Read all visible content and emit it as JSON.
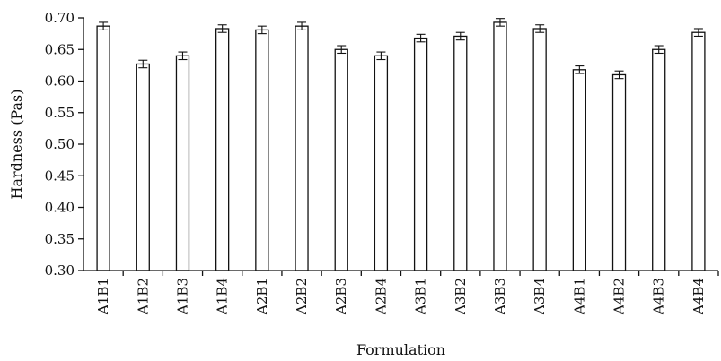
{
  "chart_data": {
    "type": "bar",
    "title": "",
    "xlabel": "Formulation",
    "ylabel": "Hardness (Pas)",
    "ylim": [
      0.3,
      0.7
    ],
    "yticks": [
      "0.30",
      "0.35",
      "0.40",
      "0.45",
      "0.50",
      "0.55",
      "0.60",
      "0.65",
      "0.70"
    ],
    "grid": false,
    "categories": [
      "A1B1",
      "A1B2",
      "A1B3",
      "A1B4",
      "A2B1",
      "A2B2",
      "A2B3",
      "A2B4",
      "A3B1",
      "A3B2",
      "A3B3",
      "A3B4",
      "A4B1",
      "A4B2",
      "A4B3",
      "A4B4"
    ],
    "values": [
      0.687,
      0.627,
      0.64,
      0.683,
      0.681,
      0.687,
      0.65,
      0.64,
      0.668,
      0.671,
      0.693,
      0.683,
      0.618,
      0.61,
      0.65,
      0.677
    ],
    "error": [
      0.006,
      0.006,
      0.006,
      0.006,
      0.006,
      0.006,
      0.006,
      0.006,
      0.006,
      0.006,
      0.006,
      0.006,
      0.006,
      0.006,
      0.006,
      0.006
    ]
  }
}
